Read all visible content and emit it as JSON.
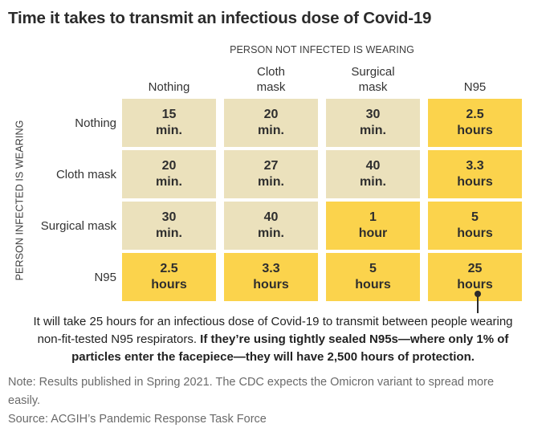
{
  "title": "Time it takes to transmit an infectious dose of Covid-19",
  "axes": {
    "top": "PERSON NOT INFECTED IS WEARING",
    "left": "PERSON INFECTED IS WEARING"
  },
  "chart_data": {
    "type": "heatmap",
    "columns": [
      "Nothing",
      "Cloth mask",
      "Surgical mask",
      "N95"
    ],
    "rows": [
      "Nothing",
      "Cloth mask",
      "Surgical mask",
      "N95"
    ],
    "cells": [
      [
        {
          "value": "15",
          "unit": "min.",
          "minutes": 15,
          "highlight": false
        },
        {
          "value": "20",
          "unit": "min.",
          "minutes": 20,
          "highlight": false
        },
        {
          "value": "30",
          "unit": "min.",
          "minutes": 30,
          "highlight": false
        },
        {
          "value": "2.5",
          "unit": "hours",
          "minutes": 150,
          "highlight": true
        }
      ],
      [
        {
          "value": "20",
          "unit": "min.",
          "minutes": 20,
          "highlight": false
        },
        {
          "value": "27",
          "unit": "min.",
          "minutes": 27,
          "highlight": false
        },
        {
          "value": "40",
          "unit": "min.",
          "minutes": 40,
          "highlight": false
        },
        {
          "value": "3.3",
          "unit": "hours",
          "minutes": 198,
          "highlight": true
        }
      ],
      [
        {
          "value": "30",
          "unit": "min.",
          "minutes": 30,
          "highlight": false
        },
        {
          "value": "40",
          "unit": "min.",
          "minutes": 40,
          "highlight": false
        },
        {
          "value": "1",
          "unit": "hour",
          "minutes": 60,
          "highlight": true
        },
        {
          "value": "5",
          "unit": "hours",
          "minutes": 300,
          "highlight": true
        }
      ],
      [
        {
          "value": "2.5",
          "unit": "hours",
          "minutes": 150,
          "highlight": true
        },
        {
          "value": "3.3",
          "unit": "hours",
          "minutes": 198,
          "highlight": true
        },
        {
          "value": "5",
          "unit": "hours",
          "minutes": 300,
          "highlight": true
        },
        {
          "value": "25",
          "unit": "hours",
          "minutes": 1500,
          "highlight": true
        }
      ]
    ]
  },
  "annotation": {
    "regular": "It will take 25 hours for an infectious dose of Covid-19 to transmit between people wearing non-fit-tested N95 respirators.",
    "bold": "If they’re using tightly sealed N95s—where only 1% of particles enter the facepiece—they will have 2,500 hours of protection."
  },
  "note": "Note: Results published in Spring 2021. The CDC expects the Omicron variant to spread more easily.",
  "source": "Source: ACGIH’s Pandemic Response Task Force",
  "colors": {
    "cell_default": "#EBE1BC",
    "cell_highlight": "#FBD34C",
    "text_dark": "#2b2b2b",
    "text_gray": "#6a6a6a"
  }
}
